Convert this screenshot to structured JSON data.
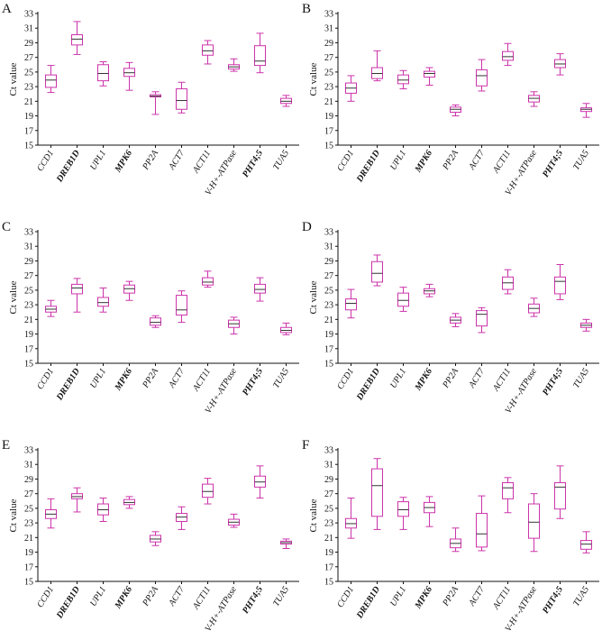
{
  "colors": {
    "box": "#cc33aa",
    "median": "#333333",
    "axis": "#111111"
  },
  "chart_data": [
    {
      "type": "box",
      "panel": "A",
      "ylabel": "Ct value",
      "ylim": [
        15,
        33
      ],
      "yticks": [
        "15",
        "17",
        "19",
        "21",
        "23",
        "25",
        "27",
        "29",
        "31",
        "33"
      ],
      "categories": [
        "CCD1",
        "DREB1D",
        "UPL1",
        "MPK6",
        "PP2A",
        "ACT7",
        "ACT11",
        "V-H+-ATPase",
        "PHT4;5",
        "TUA5"
      ],
      "boxes": [
        {
          "min": 22.2,
          "q1": 22.9,
          "median": 23.9,
          "q3": 24.6,
          "max": 25.9
        },
        {
          "min": 27.4,
          "q1": 28.7,
          "median": 29.5,
          "q3": 30.1,
          "max": 31.9
        },
        {
          "min": 23.1,
          "q1": 23.8,
          "median": 24.8,
          "q3": 26.0,
          "max": 26.4
        },
        {
          "min": 22.5,
          "q1": 24.4,
          "median": 24.9,
          "q3": 25.5,
          "max": 26.3
        },
        {
          "min": 19.2,
          "q1": 21.6,
          "median": 21.7,
          "q3": 21.9,
          "max": 22.3
        },
        {
          "min": 19.4,
          "q1": 19.9,
          "median": 21.1,
          "q3": 22.7,
          "max": 23.6
        },
        {
          "min": 26.1,
          "q1": 27.3,
          "median": 27.9,
          "q3": 28.7,
          "max": 29.3
        },
        {
          "min": 25.1,
          "q1": 25.4,
          "median": 25.7,
          "q3": 26.0,
          "max": 26.8
        },
        {
          "min": 24.9,
          "q1": 25.9,
          "median": 26.5,
          "q3": 28.6,
          "max": 30.3
        },
        {
          "min": 20.3,
          "q1": 20.7,
          "median": 21.0,
          "q3": 21.4,
          "max": 21.8
        }
      ]
    },
    {
      "type": "box",
      "panel": "B",
      "ylabel": "Ct value",
      "ylim": [
        15,
        33
      ],
      "yticks": [
        "15",
        "17",
        "19",
        "21",
        "23",
        "25",
        "27",
        "29",
        "31",
        "33"
      ],
      "categories": [
        "CCD1",
        "DREB1D",
        "UPL1",
        "MPK6",
        "PP2A",
        "ACT7",
        "ACT11",
        "V-H+-ATPase",
        "PHT4;5",
        "TUA5"
      ],
      "boxes": [
        {
          "min": 21.0,
          "q1": 22.1,
          "median": 22.8,
          "q3": 23.5,
          "max": 24.5
        },
        {
          "min": 23.8,
          "q1": 24.1,
          "median": 24.8,
          "q3": 25.6,
          "max": 27.9
        },
        {
          "min": 22.7,
          "q1": 23.4,
          "median": 23.9,
          "q3": 24.6,
          "max": 25.2
        },
        {
          "min": 23.2,
          "q1": 24.3,
          "median": 24.8,
          "q3": 25.1,
          "max": 25.6
        },
        {
          "min": 19.0,
          "q1": 19.5,
          "median": 19.9,
          "q3": 20.2,
          "max": 20.5
        },
        {
          "min": 22.4,
          "q1": 23.1,
          "median": 24.5,
          "q3": 25.3,
          "max": 26.7
        },
        {
          "min": 25.9,
          "q1": 26.6,
          "median": 27.1,
          "q3": 27.8,
          "max": 28.9
        },
        {
          "min": 20.3,
          "q1": 20.9,
          "median": 21.4,
          "q3": 21.8,
          "max": 22.3
        },
        {
          "min": 24.6,
          "q1": 25.6,
          "median": 26.1,
          "q3": 26.7,
          "max": 27.5
        },
        {
          "min": 18.8,
          "q1": 19.6,
          "median": 19.9,
          "q3": 20.1,
          "max": 20.7
        }
      ]
    },
    {
      "type": "box",
      "panel": "C",
      "ylabel": "Ct value",
      "ylim": [
        15,
        33
      ],
      "yticks": [
        "15",
        "17",
        "19",
        "21",
        "23",
        "25",
        "27",
        "29",
        "31",
        "33"
      ],
      "categories": [
        "CCD1",
        "DREB1D",
        "UPL1",
        "MPK6",
        "PP2A",
        "ACT7",
        "ACT11",
        "V-H+-ATPase",
        "PHT4;5",
        "TUA5"
      ],
      "boxes": [
        {
          "min": 21.4,
          "q1": 22.0,
          "median": 22.4,
          "q3": 22.8,
          "max": 23.6
        },
        {
          "min": 22.0,
          "q1": 24.5,
          "median": 25.3,
          "q3": 25.8,
          "max": 26.6
        },
        {
          "min": 22.0,
          "q1": 22.8,
          "median": 23.3,
          "q3": 24.0,
          "max": 25.3
        },
        {
          "min": 23.6,
          "q1": 24.6,
          "median": 25.2,
          "q3": 25.7,
          "max": 26.2
        },
        {
          "min": 19.9,
          "q1": 20.2,
          "median": 20.6,
          "q3": 21.2,
          "max": 21.5
        },
        {
          "min": 20.6,
          "q1": 21.6,
          "median": 22.3,
          "q3": 24.3,
          "max": 24.9
        },
        {
          "min": 25.4,
          "q1": 25.7,
          "median": 26.1,
          "q3": 26.7,
          "max": 27.6
        },
        {
          "min": 19.0,
          "q1": 19.9,
          "median": 20.4,
          "q3": 20.9,
          "max": 21.3
        },
        {
          "min": 23.5,
          "q1": 24.6,
          "median": 25.1,
          "q3": 25.8,
          "max": 26.7
        },
        {
          "min": 18.9,
          "q1": 19.2,
          "median": 19.5,
          "q3": 19.9,
          "max": 20.5
        }
      ]
    },
    {
      "type": "box",
      "panel": "D",
      "ylabel": "Ct value",
      "ylim": [
        15,
        33
      ],
      "yticks": [
        "15",
        "17",
        "19",
        "21",
        "23",
        "25",
        "27",
        "29",
        "31",
        "33"
      ],
      "categories": [
        "CCD1",
        "DREB1D",
        "UPL1",
        "MPK6",
        "PP2A",
        "ACT7",
        "ACT11",
        "V-H+-ATPase",
        "PHT4;5",
        "TUA5"
      ],
      "boxes": [
        {
          "min": 21.2,
          "q1": 22.3,
          "median": 23.2,
          "q3": 23.8,
          "max": 25.1
        },
        {
          "min": 25.6,
          "q1": 26.1,
          "median": 27.3,
          "q3": 28.9,
          "max": 29.8
        },
        {
          "min": 22.1,
          "q1": 22.8,
          "median": 23.6,
          "q3": 24.6,
          "max": 25.4
        },
        {
          "min": 24.1,
          "q1": 24.5,
          "median": 24.9,
          "q3": 25.2,
          "max": 25.8
        },
        {
          "min": 20.0,
          "q1": 20.5,
          "median": 20.9,
          "q3": 21.3,
          "max": 21.8
        },
        {
          "min": 19.2,
          "q1": 20.1,
          "median": 21.7,
          "q3": 22.2,
          "max": 22.6
        },
        {
          "min": 24.5,
          "q1": 25.1,
          "median": 26.0,
          "q3": 26.8,
          "max": 27.8
        },
        {
          "min": 21.4,
          "q1": 21.9,
          "median": 22.5,
          "q3": 23.1,
          "max": 23.9
        },
        {
          "min": 23.7,
          "q1": 24.5,
          "median": 26.2,
          "q3": 26.8,
          "max": 28.5
        },
        {
          "min": 19.4,
          "q1": 19.9,
          "median": 20.2,
          "q3": 20.5,
          "max": 21.0
        }
      ]
    },
    {
      "type": "box",
      "panel": "E",
      "ylabel": "Ct value",
      "ylim": [
        15,
        33
      ],
      "yticks": [
        "15",
        "17",
        "19",
        "21",
        "23",
        "25",
        "27",
        "29",
        "31",
        "33"
      ],
      "categories": [
        "CCD1",
        "DREB1D",
        "UPL1",
        "MPK6",
        "PP2A",
        "ACT7",
        "ACT11",
        "V-H+-ATPase",
        "PHT4;5",
        "TUA5"
      ],
      "boxes": [
        {
          "min": 22.3,
          "q1": 23.6,
          "median": 24.2,
          "q3": 24.8,
          "max": 26.3
        },
        {
          "min": 24.5,
          "q1": 26.3,
          "median": 26.6,
          "q3": 27.0,
          "max": 27.8
        },
        {
          "min": 23.2,
          "q1": 24.1,
          "median": 24.8,
          "q3": 25.6,
          "max": 26.4
        },
        {
          "min": 25.0,
          "q1": 25.5,
          "median": 25.8,
          "q3": 26.2,
          "max": 26.6
        },
        {
          "min": 19.9,
          "q1": 20.4,
          "median": 20.8,
          "q3": 21.3,
          "max": 21.8
        },
        {
          "min": 22.1,
          "q1": 23.2,
          "median": 23.8,
          "q3": 24.3,
          "max": 25.2
        },
        {
          "min": 25.6,
          "q1": 26.5,
          "median": 27.3,
          "q3": 28.3,
          "max": 29.1
        },
        {
          "min": 22.4,
          "q1": 22.7,
          "median": 23.1,
          "q3": 23.5,
          "max": 24.2
        },
        {
          "min": 26.4,
          "q1": 27.9,
          "median": 28.6,
          "q3": 29.4,
          "max": 30.8
        },
        {
          "min": 19.5,
          "q1": 20.1,
          "median": 20.3,
          "q3": 20.5,
          "max": 20.8
        }
      ]
    },
    {
      "type": "box",
      "panel": "F",
      "ylabel": "Ct value",
      "ylim": [
        15,
        33
      ],
      "yticks": [
        "15",
        "17",
        "19",
        "21",
        "23",
        "25",
        "27",
        "29",
        "31",
        "33"
      ],
      "categories": [
        "CCD1",
        "DREB1D",
        "UPL1",
        "MPK6",
        "PP2A",
        "ACT7",
        "ACT11",
        "V-H+-ATPase",
        "PHT4;5",
        "TUA5"
      ],
      "boxes": [
        {
          "min": 20.9,
          "q1": 22.3,
          "median": 22.9,
          "q3": 23.6,
          "max": 26.4
        },
        {
          "min": 22.1,
          "q1": 23.9,
          "median": 28.1,
          "q3": 30.4,
          "max": 31.8
        },
        {
          "min": 22.1,
          "q1": 23.9,
          "median": 24.8,
          "q3": 25.9,
          "max": 26.5
        },
        {
          "min": 22.5,
          "q1": 24.4,
          "median": 25.1,
          "q3": 25.8,
          "max": 26.6
        },
        {
          "min": 19.1,
          "q1": 19.6,
          "median": 20.2,
          "q3": 20.8,
          "max": 22.3
        },
        {
          "min": 19.2,
          "q1": 19.7,
          "median": 21.5,
          "q3": 24.3,
          "max": 26.7
        },
        {
          "min": 24.4,
          "q1": 26.3,
          "median": 27.8,
          "q3": 28.5,
          "max": 29.2
        },
        {
          "min": 19.1,
          "q1": 20.9,
          "median": 23.1,
          "q3": 25.6,
          "max": 27.0
        },
        {
          "min": 23.6,
          "q1": 24.9,
          "median": 27.9,
          "q3": 28.5,
          "max": 30.8
        },
        {
          "min": 18.9,
          "q1": 19.4,
          "median": 20.1,
          "q3": 20.6,
          "max": 21.8
        }
      ]
    }
  ]
}
